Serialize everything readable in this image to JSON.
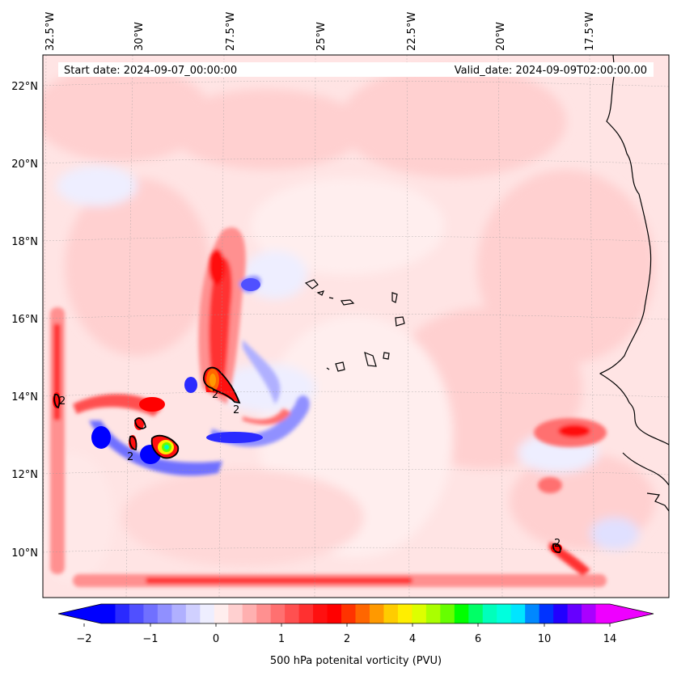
{
  "header": {
    "start_date": "Start date: 2024-09-07_00:00:00",
    "valid_date": "Valid_date: 2024-09-09T02:00:00.00"
  },
  "map": {
    "projection": "lambert-conformal",
    "extent": {
      "lon_min": -33.0,
      "lon_max": -14.5,
      "lat_min": 9.0,
      "lat_max": 22.8
    },
    "lon_labels": [
      "32.5°W",
      "30°W",
      "27.5°W",
      "25°W",
      "22.5°W",
      "20°W",
      "17.5°W"
    ],
    "lat_labels": [
      "22°N",
      "20°N",
      "18°N",
      "16°N",
      "14°N",
      "12°N",
      "10°N"
    ],
    "contour_label": "2",
    "gridlines": true,
    "coastline_color": "#000000"
  },
  "colorbar": {
    "title": "500 hPa potenital vorticity (PVU)",
    "ticks": [
      "−2",
      "−1",
      "0",
      "1",
      "2",
      "4",
      "6",
      "10",
      "14"
    ],
    "colors": [
      "#0000ff",
      "#2a2aff",
      "#5050ff",
      "#7070ff",
      "#9090ff",
      "#b0b0ff",
      "#d0d0ff",
      "#eeeeff",
      "#ffeeee",
      "#ffd0d0",
      "#ffb0b0",
      "#ff9090",
      "#ff7070",
      "#ff5050",
      "#ff3030",
      "#ff1010",
      "#ff0000",
      "#ff3300",
      "#ff6600",
      "#ff9900",
      "#ffcc00",
      "#ffee00",
      "#ddff00",
      "#aaff00",
      "#66ff00",
      "#00ff00",
      "#00ff66",
      "#00ffbb",
      "#00ffdd",
      "#00e5ff",
      "#0088ff",
      "#0033ff",
      "#2200ff",
      "#6600ff",
      "#aa00ff",
      "#ee00ff"
    ],
    "under_color": "#0000ff",
    "over_color": "#ee00ff"
  }
}
